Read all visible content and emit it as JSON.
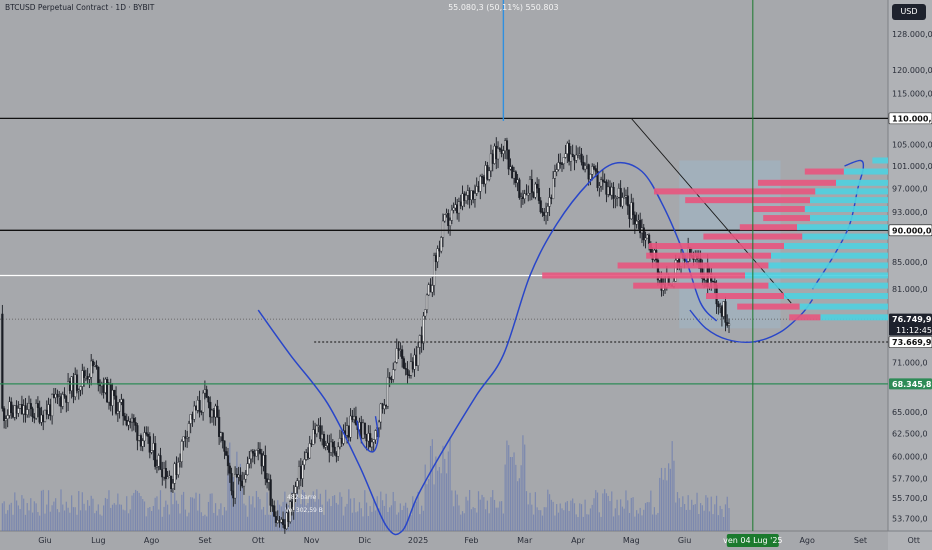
{
  "header": {
    "title": "BTCUSD Perpetual Contract · 1D · BYBIT",
    "currency_button": "USD"
  },
  "measure_label": "55.080,3 (50,11%) 550.803",
  "volume_labels": {
    "bars": "482 barre",
    "vol": "Vol 302,59 B"
  },
  "colors": {
    "background": "#a6a8ac",
    "candle": "#1a1d24",
    "trend_curve": "#2946c9",
    "volume": "#6a7bb0",
    "profile_sell": "#e8557e",
    "profile_buy": "#4fd0e0",
    "green_line": "#2e8b57",
    "measure_line": "#2f8fe0",
    "zone": "#9fb6c9"
  },
  "chart_data": {
    "type": "candlestick",
    "title": "BTCUSD Perpetual Contract · 1D · BYBIT",
    "y_scale": "log",
    "ylim": [
      52500,
      136000
    ],
    "y_ticks": [
      {
        "value": 128000,
        "label": "128.000,0"
      },
      {
        "value": 120000,
        "label": "120.000,0"
      },
      {
        "value": 115000,
        "label": "115.000,0"
      },
      {
        "value": 105000,
        "label": "105.000,0"
      },
      {
        "value": 101000,
        "label": "101.000,0"
      },
      {
        "value": 97000,
        "label": "97.000,0"
      },
      {
        "value": 93000,
        "label": "93.000,0"
      },
      {
        "value": 85000,
        "label": "85.000,0"
      },
      {
        "value": 81000,
        "label": "81.000,0"
      },
      {
        "value": 71000,
        "label": "71.000,0"
      },
      {
        "value": 65000,
        "label": "65.000,0"
      },
      {
        "value": 62500,
        "label": "62.500,0"
      },
      {
        "value": 60000,
        "label": "60.000,0"
      },
      {
        "value": 57700,
        "label": "57.700,0"
      },
      {
        "value": 55700,
        "label": "55.700,0"
      },
      {
        "value": 53700,
        "label": "53.700,0"
      }
    ],
    "price_labels": [
      {
        "value": 110000,
        "label": "110.000,0",
        "style": "outline"
      },
      {
        "value": 90000,
        "label": "90.000,0",
        "style": "outline"
      },
      {
        "value": 76749.9,
        "label": "76.749,9",
        "sub": "11:12:45",
        "style": "dark"
      },
      {
        "value": 73669.9,
        "label": "73.669,9",
        "style": "outline"
      },
      {
        "value": 68345.8,
        "label": "68.345,8",
        "style": "green"
      }
    ],
    "x_ticks": [
      "Giu",
      "Lug",
      "Ago",
      "Set",
      "Ott",
      "Nov",
      "Dic",
      "2025",
      "Feb",
      "Mar",
      "Apr",
      "Mag",
      "Giu",
      "ven 04 Lug '25",
      "Ago",
      "Set",
      "Ott"
    ],
    "x_cursor_label": "ven 04 Lug '25",
    "horizontal_lines": [
      {
        "value": 110000,
        "color": "#111111",
        "style": "solid"
      },
      {
        "value": 90000,
        "color": "#111111",
        "style": "solid"
      },
      {
        "value": 83000,
        "color": "#ffffff",
        "style": "solid"
      },
      {
        "value": 76749.9,
        "color": "#555555",
        "style": "dotted"
      },
      {
        "value": 68345.8,
        "color": "#2e8b57",
        "style": "solid"
      }
    ],
    "dotted_support": {
      "value": 73669.9,
      "from": "Nov",
      "to": "now"
    },
    "pivot_high": 109500,
    "measure_low": 49000,
    "trendline": {
      "from": [
        11,
        110000
      ],
      "to": [
        14,
        79000
      ]
    },
    "zone_box": {
      "start_month": 11.9,
      "end_month": 13.8,
      "high": 102000,
      "low": 75500
    },
    "blue_curve": [
      [
        4.0,
        78000
      ],
      [
        4.6,
        72000
      ],
      [
        5.3,
        66000
      ],
      [
        5.9,
        59000
      ],
      [
        6.4,
        53000
      ],
      [
        6.7,
        52500
      ],
      [
        7.0,
        56000
      ],
      [
        7.5,
        61000
      ],
      [
        8.1,
        67000
      ],
      [
        8.6,
        72000
      ],
      [
        9.1,
        83000
      ],
      [
        9.6,
        91000
      ],
      [
        10.2,
        98000
      ],
      [
        10.7,
        101500
      ],
      [
        11.2,
        100000
      ],
      [
        11.6,
        94000
      ],
      [
        12.0,
        86000
      ],
      [
        12.3,
        79000
      ],
      [
        12.6,
        76500
      ]
    ],
    "blue_curve_small": [
      [
        5.85,
        64000
      ],
      [
        5.95,
        61500
      ],
      [
        6.15,
        60500
      ],
      [
        6.25,
        62000
      ],
      [
        6.2,
        64500
      ]
    ],
    "projection_arc": [
      [
        12.1,
        78000
      ],
      [
        12.4,
        75500
      ],
      [
        12.8,
        74000
      ],
      [
        13.3,
        73700
      ],
      [
        13.8,
        75000
      ],
      [
        14.2,
        77500
      ],
      [
        14.4,
        79500
      ]
    ],
    "projection_up": [
      [
        14.4,
        81000
      ],
      [
        14.8,
        86000
      ],
      [
        15.1,
        91000
      ],
      [
        15.25,
        97000
      ],
      [
        15.35,
        100500
      ],
      [
        15.3,
        102000
      ],
      [
        15.0,
        101000
      ]
    ],
    "price_waypoints": [
      [
        0.0,
        65000
      ],
      [
        0.6,
        68500
      ],
      [
        0.9,
        70500
      ],
      [
        1.2,
        67000
      ],
      [
        1.6,
        64000
      ],
      [
        2.0,
        60500
      ],
      [
        2.4,
        57500
      ],
      [
        2.7,
        64000
      ],
      [
        3.0,
        66500
      ],
      [
        3.2,
        64500
      ],
      [
        3.5,
        56500
      ],
      [
        3.7,
        58000
      ],
      [
        4.0,
        61500
      ],
      [
        4.3,
        54500
      ],
      [
        4.5,
        52800
      ],
      [
        4.8,
        58500
      ],
      [
        5.1,
        63000
      ],
      [
        5.4,
        60500
      ],
      [
        5.8,
        64000
      ],
      [
        6.1,
        61500
      ],
      [
        6.4,
        67000
      ],
      [
        6.6,
        72500
      ],
      [
        6.9,
        69500
      ],
      [
        7.1,
        76000
      ],
      [
        7.3,
        84500
      ],
      [
        7.5,
        91000
      ],
      [
        7.8,
        94000
      ],
      [
        8.0,
        96500
      ],
      [
        8.3,
        100500
      ],
      [
        8.6,
        105500
      ],
      [
        8.9,
        95500
      ],
      [
        9.1,
        97500
      ],
      [
        9.4,
        93500
      ],
      [
        9.7,
        102500
      ],
      [
        10.0,
        104500
      ],
      [
        10.2,
        99500
      ],
      [
        10.5,
        97500
      ],
      [
        10.8,
        95500
      ],
      [
        11.1,
        92000
      ],
      [
        11.4,
        86500
      ],
      [
        11.6,
        81000
      ],
      [
        11.9,
        84500
      ],
      [
        12.1,
        86000
      ],
      [
        12.3,
        84000
      ],
      [
        12.5,
        82500
      ],
      [
        12.7,
        78000
      ],
      [
        12.85,
        76700
      ]
    ],
    "volume_profile": [
      {
        "price": 102000,
        "sell": 0.0,
        "buy": 0.06
      },
      {
        "price": 100000,
        "sell": 0.15,
        "buy": 0.17
      },
      {
        "price": 98000,
        "sell": 0.3,
        "buy": 0.2
      },
      {
        "price": 96500,
        "sell": 0.62,
        "buy": 0.28
      },
      {
        "price": 95000,
        "sell": 0.48,
        "buy": 0.3
      },
      {
        "price": 93500,
        "sell": 0.2,
        "buy": 0.32
      },
      {
        "price": 92000,
        "sell": 0.18,
        "buy": 0.3
      },
      {
        "price": 90500,
        "sell": 0.22,
        "buy": 0.35
      },
      {
        "price": 89000,
        "sell": 0.38,
        "buy": 0.33
      },
      {
        "price": 87500,
        "sell": 0.52,
        "buy": 0.4
      },
      {
        "price": 86000,
        "sell": 0.48,
        "buy": 0.45
      },
      {
        "price": 84500,
        "sell": 0.58,
        "buy": 0.46
      },
      {
        "price": 83000,
        "sell": 0.78,
        "buy": 0.55
      },
      {
        "price": 81500,
        "sell": 0.52,
        "buy": 0.46
      },
      {
        "price": 80000,
        "sell": 0.3,
        "buy": 0.4
      },
      {
        "price": 78500,
        "sell": 0.24,
        "buy": 0.34
      },
      {
        "price": 77000,
        "sell": 0.12,
        "buy": 0.26
      }
    ]
  }
}
